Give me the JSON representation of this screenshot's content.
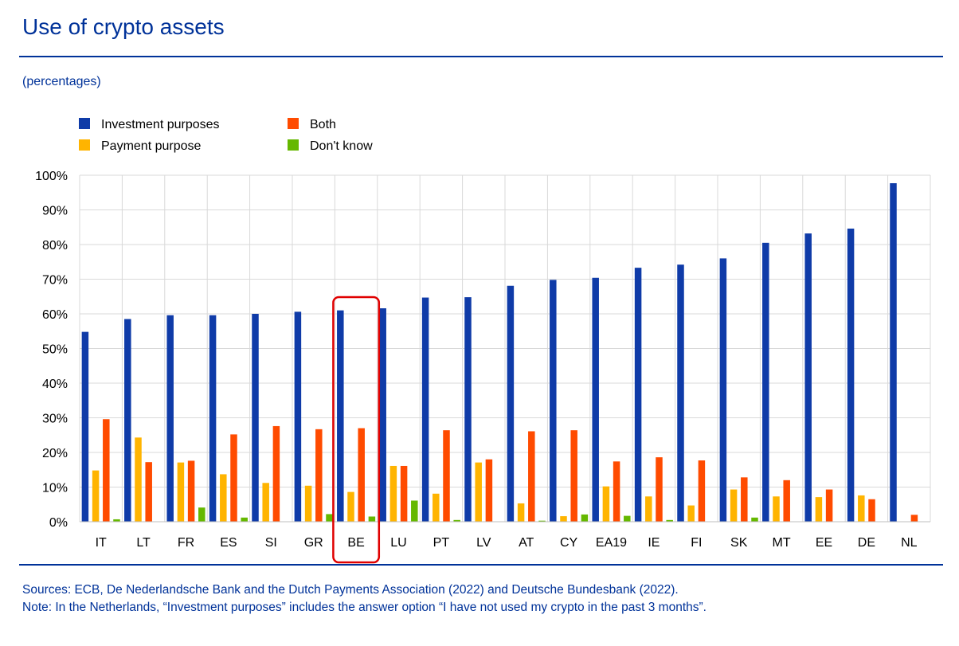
{
  "header": {
    "title": "Use of crypto assets",
    "subtitle": "(percentages)"
  },
  "footer": {
    "sources": "Sources: ECB, De Nederlandsche Bank and the Dutch Payments Association (2022) and Deutsche Bundesbank (2022).",
    "note": "Note: In the Netherlands, “Investment purposes” includes the answer option “I have not used my crypto in the past 3 months”."
  },
  "colors": {
    "investment": "#0F3BA8",
    "payment": "#FFB400",
    "both": "#FF4B00",
    "dont_know": "#65B800",
    "title": "#003299",
    "highlight": "#E00000"
  },
  "chart_data": {
    "type": "bar",
    "title": "Use of crypto assets",
    "ylabel": "(percentages)",
    "xlabel": "",
    "ylim": [
      0,
      100
    ],
    "yticks": [
      0,
      10,
      20,
      30,
      40,
      50,
      60,
      70,
      80,
      90,
      100
    ],
    "ytick_labels": [
      "0%",
      "10%",
      "20%",
      "30%",
      "40%",
      "50%",
      "60%",
      "70%",
      "80%",
      "90%",
      "100%"
    ],
    "grid": true,
    "legend_position": "top-left",
    "highlighted_category": "BE",
    "categories": [
      "IT",
      "LT",
      "FR",
      "ES",
      "SI",
      "GR",
      "BE",
      "LU",
      "PT",
      "LV",
      "AT",
      "CY",
      "EA19",
      "IE",
      "FI",
      "SK",
      "MT",
      "EE",
      "DE",
      "NL"
    ],
    "series": [
      {
        "name": "Investment purposes",
        "key": "investment",
        "values": [
          54.8,
          58.5,
          59.6,
          59.6,
          60.0,
          60.6,
          61.0,
          61.6,
          64.7,
          64.8,
          68.1,
          69.8,
          70.4,
          73.3,
          74.2,
          76.0,
          80.5,
          83.2,
          84.6,
          97.7
        ]
      },
      {
        "name": "Payment purpose",
        "key": "payment",
        "values": [
          14.8,
          24.3,
          17.1,
          13.7,
          11.2,
          10.4,
          8.6,
          16.1,
          8.1,
          17.1,
          5.3,
          1.6,
          10.2,
          7.3,
          4.7,
          9.3,
          7.3,
          7.1,
          7.6,
          0.0
        ]
      },
      {
        "name": "Both",
        "key": "both",
        "values": [
          29.6,
          17.2,
          17.6,
          25.2,
          27.6,
          26.7,
          27.0,
          16.1,
          26.4,
          18.0,
          26.1,
          26.4,
          17.4,
          18.6,
          17.7,
          12.8,
          12.0,
          9.3,
          6.5,
          2.0
        ]
      },
      {
        "name": "Don't know",
        "key": "dont_know",
        "values": [
          0.7,
          0.0,
          4.1,
          1.2,
          0.0,
          2.2,
          1.5,
          6.1,
          0.5,
          0.0,
          0.3,
          2.1,
          1.7,
          0.5,
          0.0,
          1.2,
          0.0,
          0.0,
          0.0,
          0.0
        ]
      }
    ],
    "legend": [
      {
        "label": "Investment purposes",
        "key": "investment"
      },
      {
        "label": "Payment purpose",
        "key": "payment"
      },
      {
        "label": "Both",
        "key": "both"
      },
      {
        "label": "Don't know",
        "key": "dont_know"
      }
    ]
  }
}
